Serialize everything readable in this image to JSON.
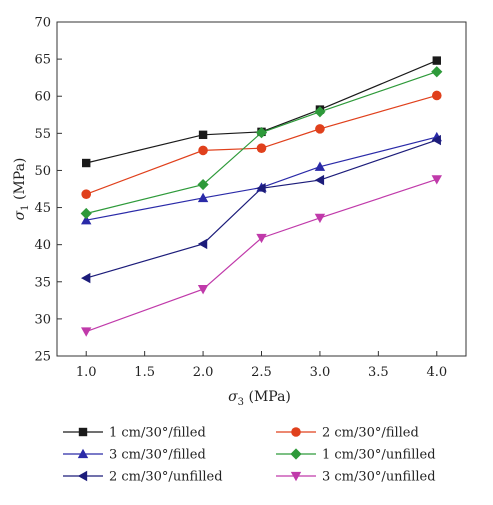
{
  "chart_data": {
    "type": "line",
    "title": "",
    "xlabel": {
      "main": "σ",
      "sub": "3",
      "unit": " (MPa)"
    },
    "ylabel": {
      "main": "σ",
      "sub": "1",
      "unit": " (MPa)"
    },
    "xlim": [
      0.75,
      4.25
    ],
    "ylim": [
      25,
      70
    ],
    "x_ticks": [
      1.0,
      1.5,
      2.0,
      2.5,
      3.0,
      3.5,
      4.0
    ],
    "x_tick_labels": [
      "1.0",
      "1.5",
      "2.0",
      "2.5",
      "3.0",
      "3.5",
      "4.0"
    ],
    "y_ticks": [
      25,
      30,
      35,
      40,
      45,
      50,
      55,
      60,
      65,
      70
    ],
    "y_tick_labels": [
      "25",
      "30",
      "35",
      "40",
      "45",
      "50",
      "55",
      "60",
      "65",
      "70"
    ],
    "grid": false,
    "legend_position": "bottom",
    "series": [
      {
        "name": "1 cm/30°/filled",
        "color": "#1a1a1a",
        "marker": "square",
        "x": [
          1.0,
          2.0,
          2.5,
          3.0,
          4.0
        ],
        "values": [
          51.0,
          54.8,
          55.2,
          58.2,
          64.8
        ]
      },
      {
        "name": "2 cm/30°/filled",
        "color": "#e0401c",
        "marker": "circle",
        "x": [
          1.0,
          2.0,
          2.5,
          3.0,
          4.0
        ],
        "values": [
          46.8,
          52.7,
          53.0,
          55.6,
          60.1
        ]
      },
      {
        "name": "3 cm/30°/filled",
        "color": "#2a2aa8",
        "marker": "triangle-up",
        "x": [
          1.0,
          2.0,
          2.5,
          3.0,
          4.0
        ],
        "values": [
          43.3,
          46.3,
          47.7,
          50.5,
          54.5
        ]
      },
      {
        "name": "1 cm/30°/unfilled",
        "color": "#2e9a3a",
        "marker": "diamond",
        "x": [
          1.0,
          2.0,
          2.5,
          3.0,
          4.0
        ],
        "values": [
          44.2,
          48.1,
          55.1,
          57.9,
          63.3
        ]
      },
      {
        "name": "2 cm/30°/unfilled",
        "color": "#1c1c7a",
        "marker": "triangle-left",
        "x": [
          1.0,
          2.0,
          2.5,
          3.0,
          4.0
        ],
        "values": [
          35.5,
          40.1,
          47.6,
          48.7,
          54.1
        ]
      },
      {
        "name": "3 cm/30°/unfilled",
        "color": "#c03aaa",
        "marker": "triangle-down",
        "x": [
          1.0,
          2.0,
          2.5,
          3.0,
          4.0
        ],
        "values": [
          28.3,
          34.0,
          40.9,
          43.6,
          48.8
        ]
      }
    ]
  }
}
